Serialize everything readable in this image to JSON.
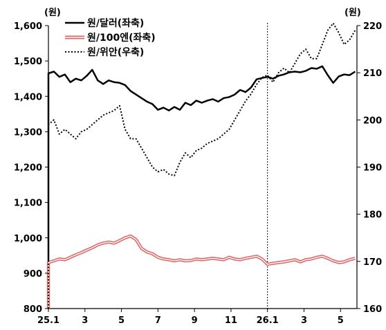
{
  "chart_data": {
    "type": "line",
    "left_axis": {
      "unit": "(원)",
      "ylim": [
        800,
        1600
      ],
      "ticks": [
        "1,600",
        "1,500",
        "1,400",
        "1,300",
        "1,200",
        "1,100",
        "1,000",
        "900",
        "800"
      ]
    },
    "right_axis": {
      "unit": "(원)",
      "ylim": [
        160,
        220
      ],
      "ticks": [
        "220",
        "210",
        "200",
        "190",
        "180",
        "170",
        "160"
      ]
    },
    "x_axis": {
      "ticks": [
        "25.1",
        "3",
        "5",
        "7",
        "9",
        "11",
        "26.1",
        "3",
        "5"
      ],
      "tick_month_index": [
        0,
        2,
        4,
        6,
        8,
        10,
        12,
        14,
        16
      ]
    },
    "x_range_month_index": [
      0,
      16.9
    ],
    "marker_month_index": 12,
    "legend_placement": "top-left",
    "series": [
      {
        "name": "원/달러(좌축)",
        "axis": "left",
        "color": "#000000",
        "style": "solid",
        "x": [
          0,
          0.3,
          0.6,
          0.9,
          1.2,
          1.5,
          1.8,
          2.1,
          2.4,
          2.7,
          3.0,
          3.3,
          3.6,
          3.9,
          4.2,
          4.5,
          4.8,
          5.1,
          5.4,
          5.7,
          6.0,
          6.3,
          6.6,
          6.9,
          7.2,
          7.5,
          7.8,
          8.1,
          8.4,
          8.7,
          9.0,
          9.3,
          9.6,
          9.9,
          10.2,
          10.5,
          10.8,
          11.1,
          11.4,
          11.7,
          12.0,
          12.3,
          12.6,
          12.9,
          13.2,
          13.5,
          13.8,
          14.1,
          14.4,
          14.7,
          15.0,
          15.3,
          15.6,
          15.9,
          16.2,
          16.5,
          16.8
        ],
        "values": [
          1465,
          1470,
          1455,
          1462,
          1440,
          1450,
          1445,
          1458,
          1475,
          1445,
          1435,
          1445,
          1440,
          1438,
          1432,
          1415,
          1405,
          1395,
          1385,
          1378,
          1362,
          1368,
          1360,
          1370,
          1362,
          1382,
          1375,
          1388,
          1382,
          1388,
          1392,
          1385,
          1395,
          1398,
          1405,
          1418,
          1412,
          1425,
          1448,
          1452,
          1455,
          1450,
          1458,
          1462,
          1468,
          1470,
          1468,
          1472,
          1480,
          1478,
          1485,
          1460,
          1438,
          1456,
          1462,
          1460,
          1470
        ]
      },
      {
        "name": "원/100엔(좌축)",
        "axis": "left",
        "color": "#e06666",
        "style": "double",
        "x": [
          0,
          0.3,
          0.6,
          0.9,
          1.2,
          1.5,
          1.8,
          2.1,
          2.4,
          2.7,
          3.0,
          3.3,
          3.6,
          3.9,
          4.2,
          4.5,
          4.8,
          5.1,
          5.4,
          5.7,
          6.0,
          6.3,
          6.6,
          6.9,
          7.2,
          7.5,
          7.8,
          8.1,
          8.4,
          8.7,
          9.0,
          9.3,
          9.6,
          9.9,
          10.2,
          10.5,
          10.8,
          11.1,
          11.4,
          11.7,
          12.0,
          12.3,
          12.6,
          12.9,
          13.2,
          13.5,
          13.8,
          14.1,
          14.4,
          14.7,
          15.0,
          15.3,
          15.6,
          15.9,
          16.2,
          16.5,
          16.8
        ],
        "values": [
          930,
          935,
          940,
          938,
          945,
          952,
          958,
          965,
          972,
          980,
          985,
          988,
          985,
          992,
          1000,
          1005,
          995,
          970,
          960,
          955,
          945,
          940,
          938,
          935,
          938,
          935,
          936,
          940,
          938,
          940,
          942,
          940,
          938,
          945,
          940,
          938,
          942,
          945,
          948,
          940,
          925,
          928,
          930,
          932,
          935,
          938,
          932,
          938,
          940,
          945,
          948,
          942,
          935,
          930,
          932,
          938,
          942
        ]
      },
      {
        "name": "원/위안(우축)",
        "axis": "right",
        "color": "#000000",
        "style": "dotted",
        "x": [
          0,
          0.3,
          0.6,
          0.9,
          1.2,
          1.5,
          1.8,
          2.1,
          2.4,
          2.7,
          3.0,
          3.3,
          3.6,
          3.9,
          4.2,
          4.5,
          4.8,
          5.1,
          5.4,
          5.7,
          6.0,
          6.3,
          6.6,
          6.9,
          7.2,
          7.5,
          7.8,
          8.1,
          8.4,
          8.7,
          9.0,
          9.3,
          9.6,
          9.9,
          10.2,
          10.5,
          10.8,
          11.1,
          11.4,
          11.7,
          12.0,
          12.3,
          12.6,
          12.9,
          13.2,
          13.5,
          13.8,
          14.1,
          14.4,
          14.7,
          15.0,
          15.3,
          15.6,
          15.9,
          16.2,
          16.5,
          16.8
        ],
        "values": [
          199,
          200,
          197,
          198,
          197,
          196,
          197.5,
          198,
          199,
          200,
          201,
          201.5,
          202,
          203,
          198,
          196,
          196,
          194,
          192,
          190,
          189,
          189.5,
          188.5,
          188.2,
          191,
          193,
          192,
          193.5,
          194,
          195,
          195.5,
          196,
          197,
          198,
          200,
          202,
          204,
          205.5,
          207.5,
          209,
          209.5,
          208,
          210,
          211,
          210,
          212,
          214,
          215,
          213,
          213,
          216,
          219,
          220.5,
          218.5,
          216,
          217,
          219
        ]
      }
    ]
  }
}
